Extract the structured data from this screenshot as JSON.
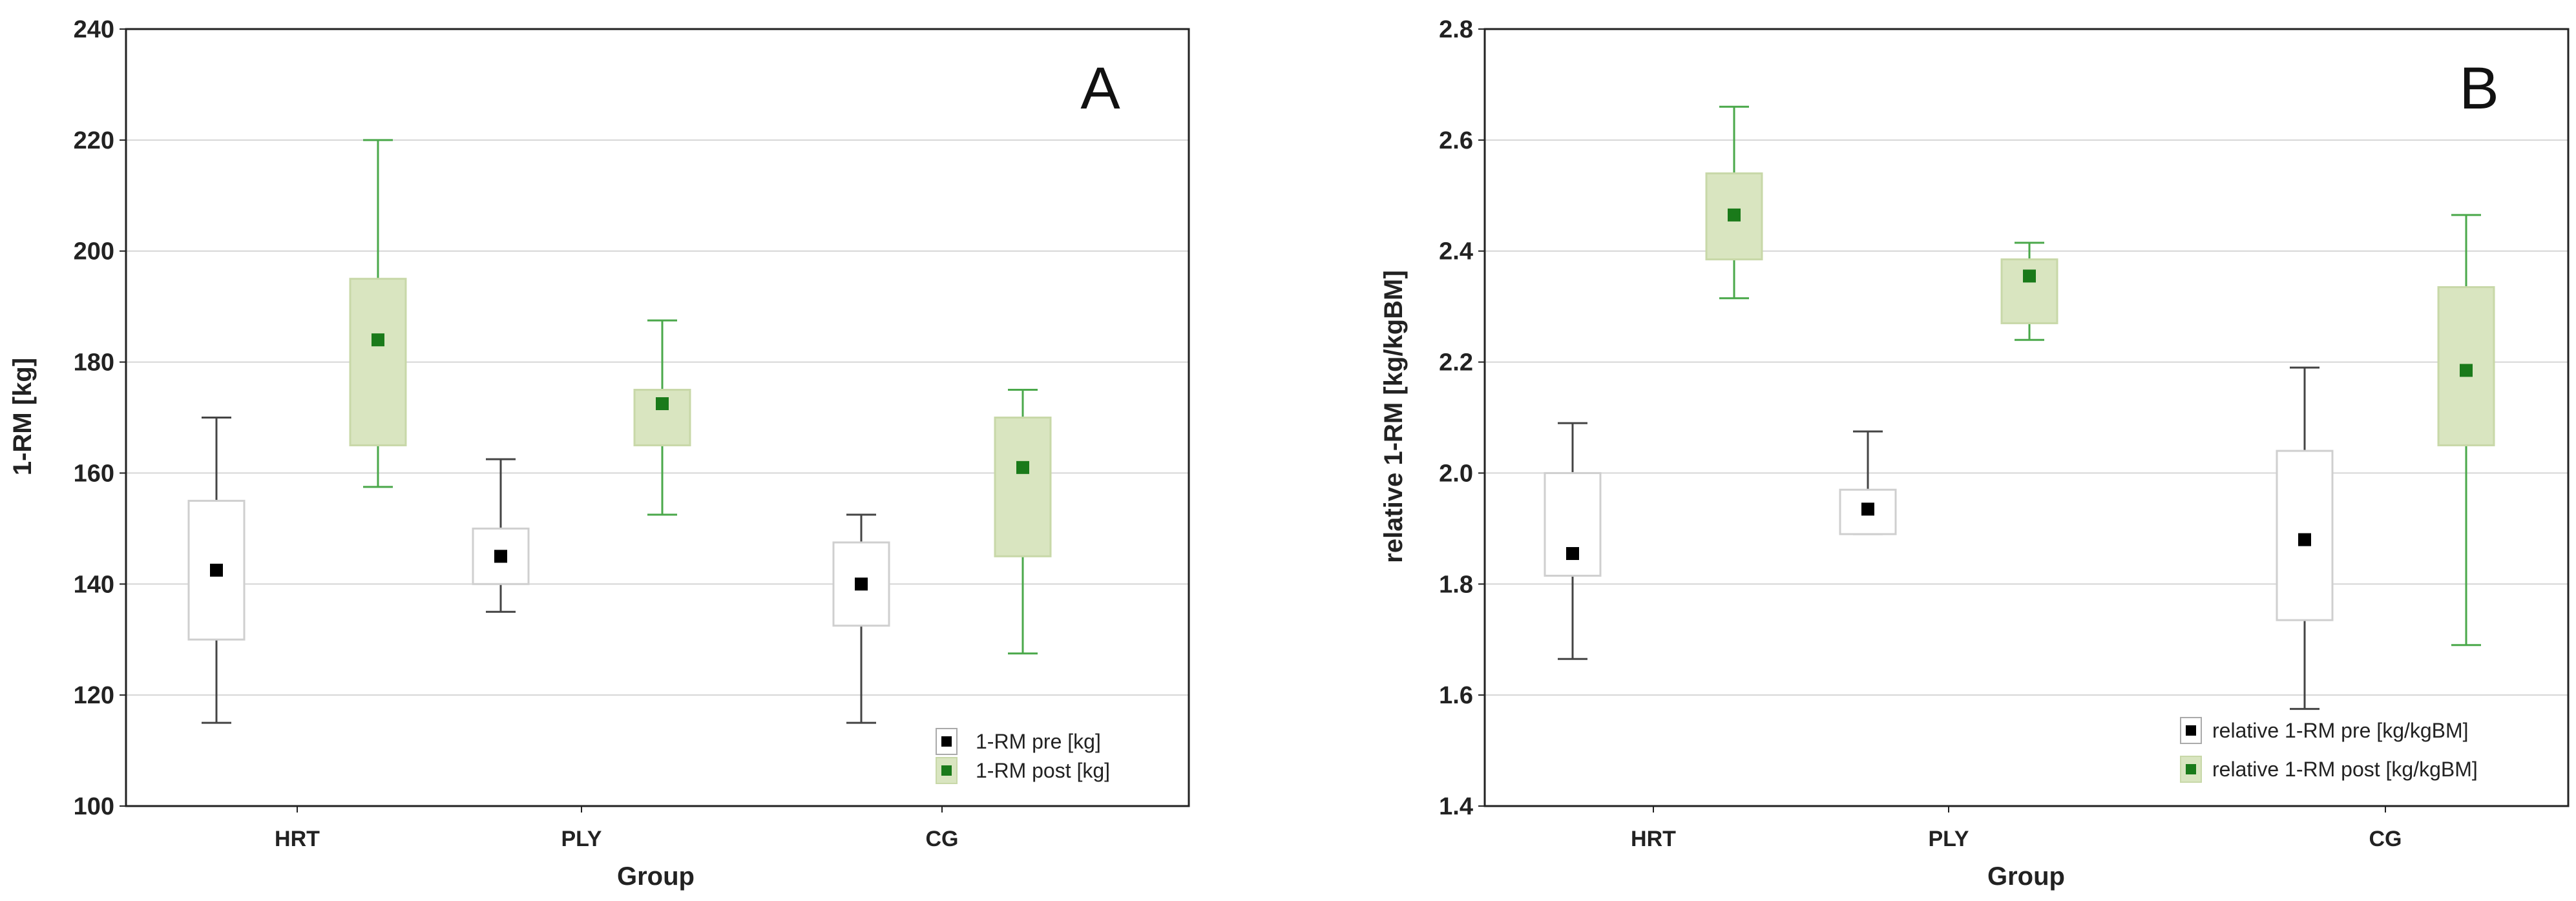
{
  "chart_data": [
    {
      "type": "boxplot",
      "panel_label": "A",
      "xlabel": "Group",
      "ylabel": "1-RM [kg]",
      "ylim": [
        100,
        240
      ],
      "yticks": [
        100,
        120,
        140,
        160,
        180,
        200,
        220,
        240
      ],
      "grid": true,
      "legend_position": "bottom-right",
      "categories": [
        "HRT",
        "PLY",
        "CG"
      ],
      "series": [
        {
          "name": "1-RM pre [kg]",
          "color": "#000000",
          "fill": "#ffffff",
          "whisker_color": "#444444",
          "mean": [
            142.5,
            145,
            140
          ],
          "box_low": [
            130,
            140,
            132.5
          ],
          "box_high": [
            155,
            150,
            147.5
          ],
          "whisker_low": [
            115,
            135,
            115
          ],
          "whisker_high": [
            170,
            162.5,
            152.5
          ]
        },
        {
          "name": "1-RM post [kg]",
          "color": "#1a7a1a",
          "fill": "#d9e5c0",
          "whisker_color": "#4aa84a",
          "mean": [
            184,
            172.5,
            161
          ],
          "box_low": [
            165,
            165,
            145
          ],
          "box_high": [
            195,
            175,
            170
          ],
          "whisker_low": [
            157.5,
            152.5,
            127.5
          ],
          "whisker_high": [
            220,
            187.5,
            175
          ]
        }
      ]
    },
    {
      "type": "boxplot",
      "panel_label": "B",
      "xlabel": "Group",
      "ylabel": "relative 1-RM [kg/kgBM]",
      "ylim": [
        1.4,
        2.8
      ],
      "yticks": [
        1.4,
        1.6,
        1.8,
        2.0,
        2.2,
        2.4,
        2.6,
        2.8
      ],
      "ytick_labels": [
        "1.4",
        "1.6",
        "1.8",
        "2.0",
        "2.2",
        "2.4",
        "2.6",
        "2.8"
      ],
      "grid": true,
      "legend_position": "bottom-right",
      "categories": [
        "HRT",
        "PLY",
        "CG"
      ],
      "series": [
        {
          "name": "relative 1-RM pre [kg/kgBM]",
          "color": "#000000",
          "fill": "#ffffff",
          "whisker_color": "#444444",
          "mean": [
            1.855,
            1.935,
            1.88
          ],
          "box_low": [
            1.815,
            1.89,
            1.735
          ],
          "box_high": [
            2.0,
            1.97,
            2.04
          ],
          "whisker_low": [
            1.665,
            1.89,
            1.575
          ],
          "whisker_high": [
            2.09,
            2.075,
            2.19
          ]
        },
        {
          "name": "relative 1-RM post [kg/kgBM]",
          "color": "#1a7a1a",
          "fill": "#d9e5c0",
          "whisker_color": "#4aa84a",
          "mean": [
            2.465,
            2.355,
            2.185
          ],
          "box_low": [
            2.385,
            2.27,
            2.05
          ],
          "box_high": [
            2.54,
            2.385,
            2.335
          ],
          "whisker_low": [
            2.315,
            2.24,
            1.69
          ],
          "whisker_high": [
            2.66,
            2.415,
            2.465
          ]
        }
      ]
    }
  ]
}
